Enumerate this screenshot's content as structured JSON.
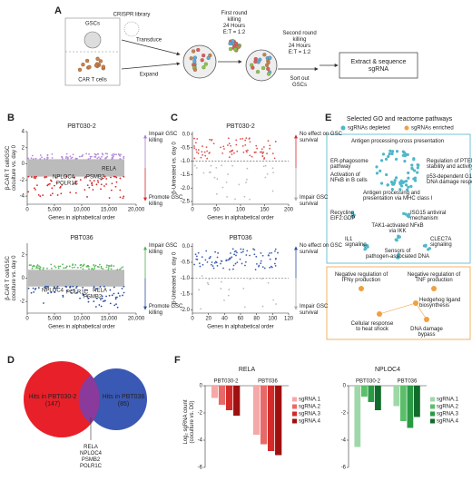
{
  "panel_a": {
    "label": "A",
    "gscs": "GSCs",
    "library": "CRISPR library",
    "transduce": "Transduce",
    "expand": "Expand",
    "car_t": "CAR T cells",
    "first_round": [
      "First round",
      "killing",
      "24 Hours",
      "E:T = 1:2"
    ],
    "second_round": [
      "Second round",
      "killing",
      "24 Hours",
      "E:T = 1:2"
    ],
    "sort": [
      "Sort out",
      "GSCs"
    ],
    "extract": [
      "Extract & sequence",
      "sgRNA"
    ]
  },
  "panel_b": {
    "label": "B",
    "ylabel": [
      "β-CAR T cell/GSC",
      "coculture vs. day 0"
    ],
    "xlabel": "Genes in alphabetical order",
    "plots": [
      {
        "title": "PBT030-2",
        "xlim": [
          0,
          20000
        ],
        "ylim": [
          -5,
          4
        ],
        "xticks": [
          0,
          {
            "value": 5000,
            "label": "5,000"
          },
          {
            "value": 10000,
            "label": "10,000"
          },
          {
            "value": 15000,
            "label": "15,000"
          },
          {
            "value": 20000,
            "label": "20,000"
          }
        ],
        "yticks": [
          4,
          2,
          0,
          -2,
          -4
        ],
        "upper_note": [
          "Impair GSC",
          "killing"
        ],
        "lower_note": [
          "Promote GSC",
          "killing"
        ],
        "genes": [
          "NPLOC4",
          "POLR1C",
          "PSMB2",
          "RELA"
        ]
      },
      {
        "title": "PBT036",
        "xlim": [
          0,
          20000
        ],
        "ylim": [
          -3,
          3
        ],
        "xticks": [
          0,
          {
            "value": 5000,
            "label": "5,000"
          },
          {
            "value": 10000,
            "label": "10,000"
          },
          {
            "value": 15000,
            "label": "15,000"
          },
          {
            "value": 20000,
            "label": "20,000"
          }
        ],
        "yticks": [
          2,
          0,
          -2
        ],
        "upper_note": [
          "Impair GSC",
          "killing"
        ],
        "lower_note": [
          "Promote GSC",
          "killing"
        ],
        "genes": [
          "NPLOC4",
          "POLR1C",
          "RELA",
          "PSMB2"
        ]
      }
    ]
  },
  "panel_c": {
    "label": "C",
    "ylabel": "β-Untreated vs. day 0",
    "xlabel": "Genes in alphabetical order",
    "plots": [
      {
        "title": "PBT030-2",
        "xlim": [
          0,
          200
        ],
        "ylim": [
          -2.6,
          0.1
        ],
        "xticks": [
          0,
          50,
          100,
          150,
          200
        ],
        "yticks": [
          {
            "value": 0,
            "label": "0.0"
          },
          -0.5,
          {
            "value": -1,
            "label": "-1.0"
          },
          -1.5,
          {
            "value": -2,
            "label": "-2.0"
          },
          -2.5
        ],
        "threshold": -1,
        "upper_note": [
          "No effect on GSC",
          "survival"
        ],
        "lower_note": [
          "Impair GSC",
          "survival"
        ]
      },
      {
        "title": "PBT036",
        "xlim": [
          0,
          120
        ],
        "ylim": [
          -2.1,
          0.1
        ],
        "xticks": [
          0,
          20,
          40,
          60,
          80,
          100,
          120
        ],
        "yticks": [
          {
            "value": 0,
            "label": "0.0"
          },
          -0.5,
          {
            "value": -1,
            "label": "-1.0"
          },
          -1.5,
          {
            "value": -2,
            "label": "-2.0"
          }
        ],
        "threshold": -1,
        "upper_note": [
          "No effect on GSC",
          "survival"
        ],
        "lower_note": [
          "Impair GSC",
          "survival"
        ]
      }
    ]
  },
  "panel_d": {
    "label": "D",
    "left": [
      "Hits in PBT030-2",
      "(147)"
    ],
    "right": [
      "Hits in PBT036",
      "(85)"
    ],
    "shared": [
      "RELA",
      "NPLOC4",
      "PSMB2",
      "POLR1C"
    ]
  },
  "panel_e": {
    "label": "E",
    "title": "Selected GO and reactome pathways",
    "legend": [
      "sgRNAs depleted",
      "sgRNAs enriched"
    ],
    "depleted": [
      [
        "Antigen processing-cross presentation"
      ],
      [
        "ER-phagosome",
        "pathway"
      ],
      [
        "Regulation of PTEN",
        "stability and activity"
      ],
      [
        "Activation of",
        "NFκB in B cells"
      ],
      [
        "p53-dependent G1",
        "DNA damage response"
      ],
      [
        "Antigen processing and",
        "presentation via MHC class I"
      ],
      [
        "Recycling",
        "EIF2:GDP"
      ],
      [
        "ISG15 antiviral",
        "mechanism"
      ],
      [
        "TAK1-activated NFκB",
        "via IKK"
      ],
      [
        "IL1",
        "signaling"
      ],
      [
        "CLEC7A",
        "signaling"
      ],
      [
        "Sensors of",
        "pathogen-associated DNA"
      ]
    ],
    "enriched": [
      [
        "Negative regulation of",
        "IFNγ production"
      ],
      [
        "Negative regulation of",
        "TNF production"
      ],
      [
        "Hedgehog ligand",
        "biosynthesis"
      ],
      [
        "Cellular response",
        "to heat shock"
      ],
      [
        "DNA damage",
        "bypass"
      ]
    ]
  },
  "panel_f": {
    "label": "F",
    "ylabel": [
      "Log₂ sgRNA count",
      "(coculture vs. D0)"
    ],
    "charts": [
      {
        "title": "RELA",
        "groups": [
          "PBT030-2",
          "PBT036"
        ],
        "ylim": [
          -6,
          0
        ],
        "yticks": [
          0,
          -2,
          -4,
          -6
        ],
        "series": [
          {
            "name": "sgRNA.1",
            "color": "#f5a8a8",
            "values": [
              -0.9,
              -3.6
            ]
          },
          {
            "name": "sgRNA.2",
            "color": "#e86a68",
            "values": [
              -1.4,
              -4.3
            ]
          },
          {
            "name": "sgRNA.3",
            "color": "#d42a2a",
            "values": [
              -1.8,
              -4.8
            ]
          },
          {
            "name": "sgRNA.4",
            "color": "#9e1010",
            "values": [
              -2.2,
              -5.1
            ]
          }
        ]
      },
      {
        "title": "NPLOC4",
        "groups": [
          "PBT030-2",
          "PBT036"
        ],
        "ylim": [
          -6,
          0
        ],
        "yticks": [
          0,
          -2,
          -4,
          -6
        ],
        "series": [
          {
            "name": "sgRNA.1",
            "color": "#9fd8a8",
            "values": [
              -4.5,
              -1.5
            ]
          },
          {
            "name": "sgRNA.2",
            "color": "#5bbf6a",
            "values": [
              -0.8,
              -2.6
            ]
          },
          {
            "name": "sgRNA.3",
            "color": "#2a9a45",
            "values": [
              -1.2,
              -3.1
            ]
          },
          {
            "name": "sgRNA.4",
            "color": "#116b2a",
            "values": [
              -1.8,
              -2.3
            ]
          }
        ]
      }
    ]
  }
}
